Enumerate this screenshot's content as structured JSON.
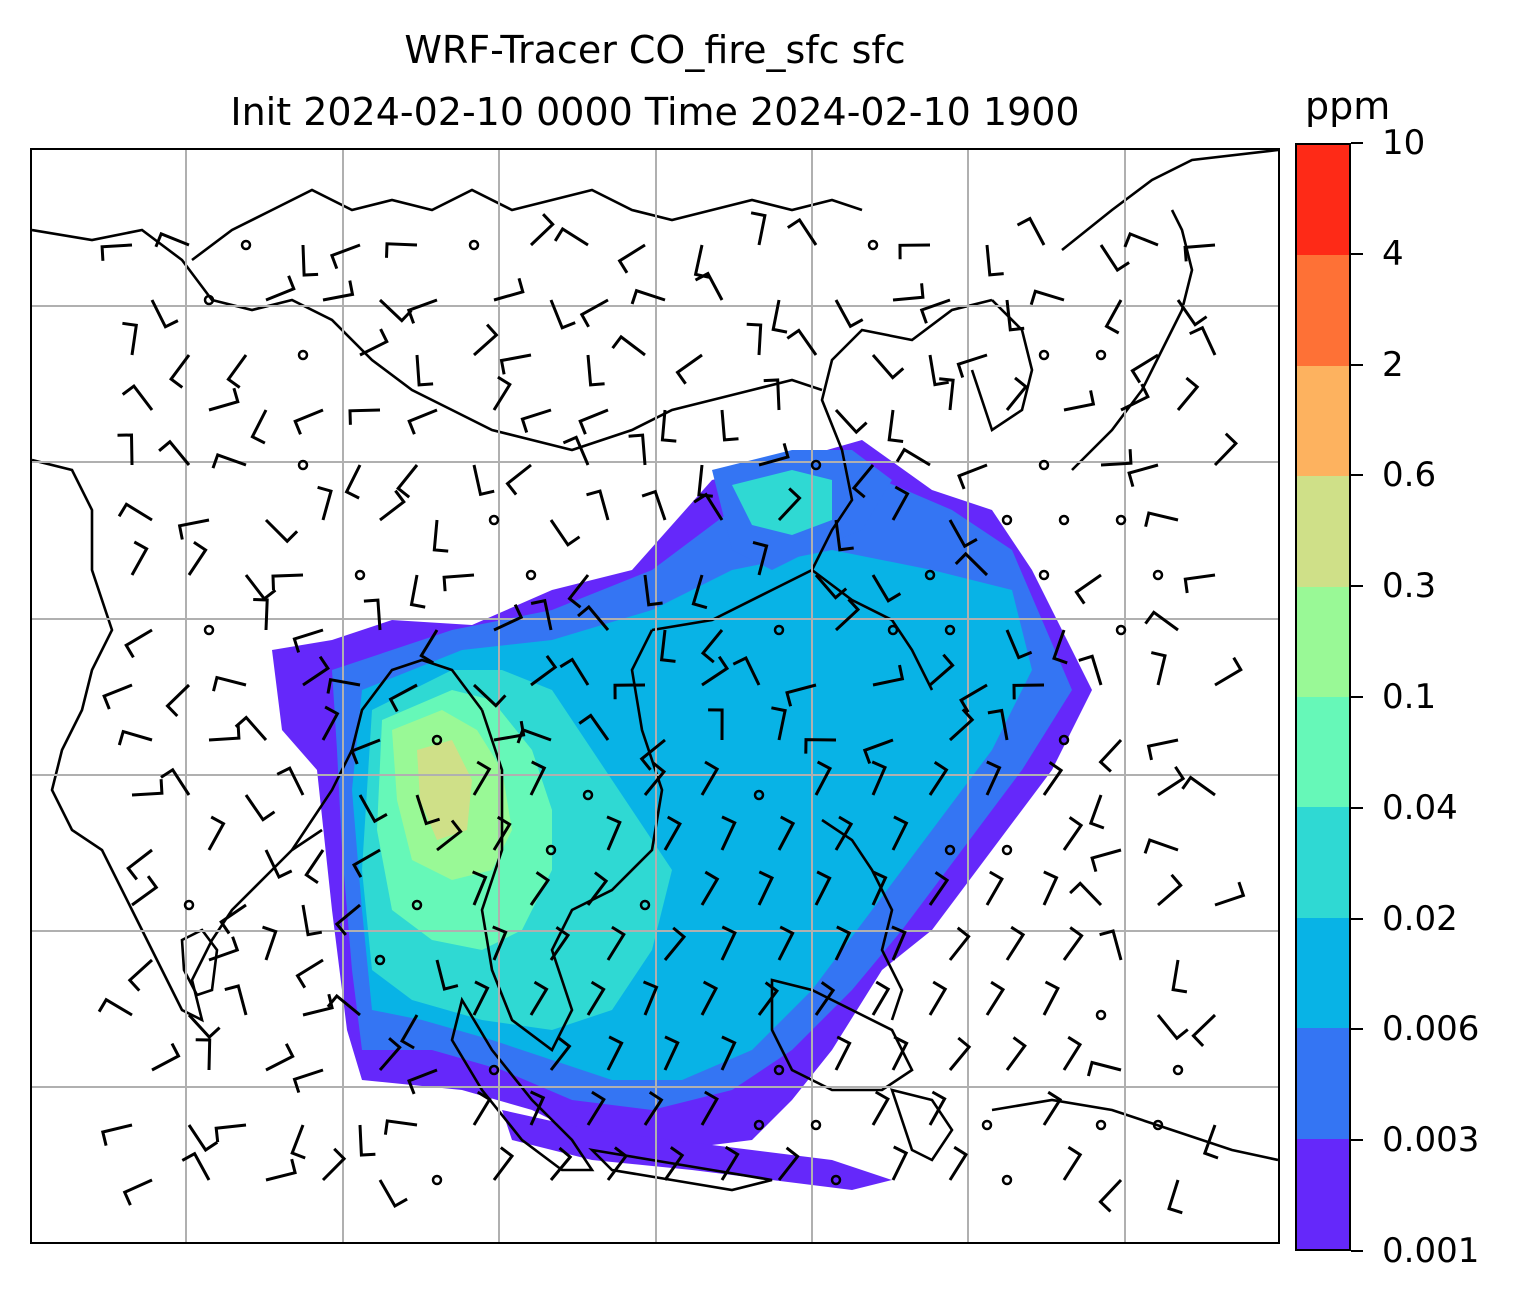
{
  "title": {
    "line1": "WRF-Tracer CO_fire_sfc sfc",
    "line2": "Init 2024-02-10 0000 Time 2024-02-10 1900"
  },
  "colorbar": {
    "unit": "ppm",
    "levels": [
      "0.001",
      "0.003",
      "0.006",
      "0.02",
      "0.04",
      "0.1",
      "0.3",
      "0.6",
      "2",
      "4",
      "10"
    ],
    "colors": [
      "#6528fa",
      "#3475f3",
      "#08b3e6",
      "#2fd9d3",
      "#66f8b8",
      "#99f996",
      "#cfe088",
      "#fdb25f",
      "#fe7136",
      "#fe2a17"
    ]
  },
  "map": {
    "gridlines": true,
    "coastline_color": "#000000",
    "gridline_color": "#b0b0b0",
    "wind_barb_color": "#000000"
  }
}
